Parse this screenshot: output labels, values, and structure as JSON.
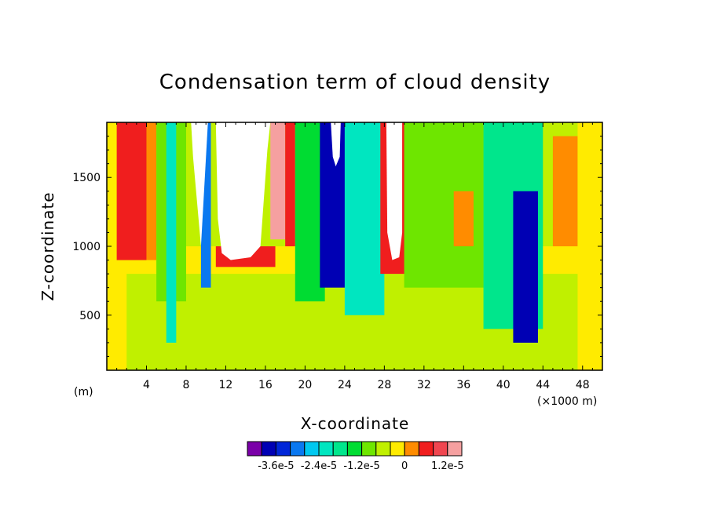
{
  "chart_data": {
    "type": "heatmap",
    "title": "Condensation term of cloud density",
    "xlabel": "X-coordinate",
    "ylabel": "Z-coordinate",
    "x_unit_left": "(m)",
    "x_unit_right": "(×1000 m)",
    "xlim": [
      0,
      50
    ],
    "ylim": [
      100,
      1900
    ],
    "x_ticks": [
      4,
      8,
      12,
      16,
      20,
      24,
      28,
      32,
      36,
      40,
      44,
      48
    ],
    "x_tick_labels": [
      "4",
      "8",
      "12",
      "16",
      "20",
      "24",
      "28",
      "32",
      "36",
      "40",
      "44",
      "48"
    ],
    "y_ticks": [
      500,
      1000,
      1500
    ],
    "y_tick_labels": [
      "500",
      "1000",
      "1500"
    ],
    "colorbar": {
      "colors": [
        "#7a00a8",
        "#0000b4",
        "#0026d8",
        "#0a78f0",
        "#00c8f0",
        "#00e6c0",
        "#00e68c",
        "#00dc32",
        "#6ee600",
        "#c0f000",
        "#ffeb00",
        "#ff8c00",
        "#f01e1e",
        "#f04650",
        "#f5a0a0"
      ],
      "tick_labels": [
        "-3.6e-5",
        "-2.4e-5",
        "-1.2e-5",
        "0",
        "1.2e-5"
      ],
      "tick_after_box": [
        1,
        4,
        7,
        10,
        13
      ]
    },
    "regions": [
      {
        "level": "undefined",
        "color": "#ffffff",
        "polygon": [
          [
            8.5,
            1900
          ],
          [
            8.7,
            1650
          ],
          [
            9.5,
            1000
          ],
          [
            10.2,
            1900
          ]
        ]
      },
      {
        "level": "undefined",
        "color": "#ffffff",
        "polygon": [
          [
            11,
            1900
          ],
          [
            11.2,
            1200
          ],
          [
            11.6,
            950
          ],
          [
            12.5,
            900
          ],
          [
            14.5,
            920
          ],
          [
            15.5,
            1000
          ],
          [
            15.8,
            1300
          ],
          [
            16.2,
            1700
          ],
          [
            16.5,
            1900
          ]
        ]
      },
      {
        "level": "undefined",
        "color": "#ffffff",
        "polygon": [
          [
            28.2,
            1900
          ],
          [
            28.3,
            1100
          ],
          [
            28.8,
            900
          ],
          [
            29.5,
            920
          ],
          [
            29.8,
            1100
          ],
          [
            29.8,
            1900
          ]
        ]
      },
      {
        "level": "undefined",
        "color": "#ffffff",
        "polygon": [
          [
            22.6,
            1900
          ],
          [
            22.8,
            1650
          ],
          [
            23.1,
            1580
          ],
          [
            23.5,
            1650
          ],
          [
            23.6,
            1900
          ]
        ]
      }
    ],
    "note_regions": "approximate contour regions read from the figure; 'level' is the colour-bar box index (0 = lowest)",
    "bands": [
      {
        "level": 9,
        "x0": 0,
        "x1": 50,
        "z0": 100,
        "z1": 900
      },
      {
        "level": 10,
        "x0": 0,
        "x1": 2,
        "z0": 100,
        "z1": 1900
      },
      {
        "level": 10,
        "x0": 0,
        "x1": 50,
        "z0": 800,
        "z1": 1000
      },
      {
        "level": 12,
        "x0": 1,
        "x1": 4,
        "z0": 900,
        "z1": 1900
      },
      {
        "level": 11,
        "x0": 4,
        "x1": 5,
        "z0": 900,
        "z1": 1900
      },
      {
        "level": 8,
        "x0": 5,
        "x1": 8,
        "z0": 600,
        "z1": 1900
      },
      {
        "level": 5,
        "x0": 6,
        "x1": 7,
        "z0": 300,
        "z1": 1900
      },
      {
        "level": 3,
        "x0": 9.5,
        "x1": 10.5,
        "z0": 700,
        "z1": 1900
      },
      {
        "level": 12,
        "x0": 11,
        "x1": 17,
        "z0": 850,
        "z1": 1000
      },
      {
        "level": 14,
        "x0": 16.5,
        "x1": 18,
        "z0": 1050,
        "z1": 1900
      },
      {
        "level": 12,
        "x0": 18,
        "x1": 19,
        "z0": 1000,
        "z1": 1900
      },
      {
        "level": 7,
        "x0": 19,
        "x1": 22,
        "z0": 600,
        "z1": 1900
      },
      {
        "level": 1,
        "x0": 21.5,
        "x1": 24.5,
        "z0": 700,
        "z1": 1900
      },
      {
        "level": 5,
        "x0": 24,
        "x1": 28,
        "z0": 500,
        "z1": 1900
      },
      {
        "level": 12,
        "x0": 27.6,
        "x1": 30.2,
        "z0": 800,
        "z1": 1900
      },
      {
        "level": 8,
        "x0": 30,
        "x1": 38,
        "z0": 700,
        "z1": 1900
      },
      {
        "level": 11,
        "x0": 35,
        "x1": 37,
        "z0": 1000,
        "z1": 1400
      },
      {
        "level": 6,
        "x0": 38,
        "x1": 44,
        "z0": 400,
        "z1": 1900
      },
      {
        "level": 1,
        "x0": 41,
        "x1": 43.5,
        "z0": 300,
        "z1": 1400
      },
      {
        "level": 11,
        "x0": 45,
        "x1": 47.5,
        "z0": 1000,
        "z1": 1800
      },
      {
        "level": 10,
        "x0": 47.5,
        "x1": 50,
        "z0": 100,
        "z1": 1900
      }
    ]
  }
}
